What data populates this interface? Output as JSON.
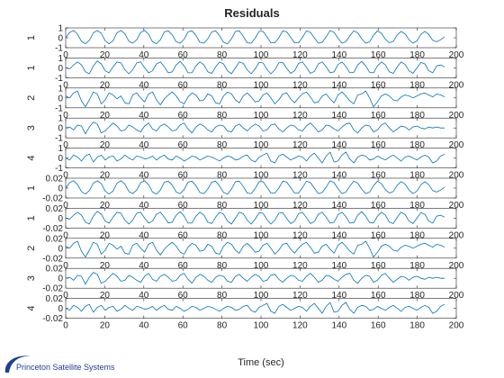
{
  "chart_data": {
    "type": "line",
    "title": "Residuals",
    "xlabel": "Time (sec)",
    "xlim": [
      0,
      200
    ],
    "xticks": [
      0,
      20,
      40,
      60,
      80,
      100,
      120,
      140,
      160,
      180,
      200
    ],
    "x_end": 194,
    "line_color": "#0072bd",
    "grid": false,
    "panels": [
      {
        "ylabel": "1",
        "ylim": [
          -1,
          1
        ],
        "yticks": [
          "1",
          "0",
          "-1"
        ],
        "y": [
          0.0,
          0.55,
          0.75,
          0.35,
          -0.35,
          -0.6,
          -0.25,
          0.5,
          0.75,
          0.45,
          -0.3,
          -0.6,
          -0.3,
          0.5,
          0.75,
          0.4,
          -0.35,
          -0.55,
          -0.2,
          0.55,
          0.75,
          0.35,
          -0.4,
          -0.6,
          -0.2,
          0.6,
          0.7,
          0.3,
          -0.4,
          -0.55,
          -0.15,
          0.6,
          0.7,
          0.25,
          -0.45,
          -0.55,
          -0.1,
          0.6,
          0.7,
          0.2,
          -0.45,
          -0.6,
          -0.1,
          0.65,
          0.7,
          0.15,
          -0.5,
          -0.55,
          -0.05,
          0.65,
          0.65,
          0.1,
          -0.5,
          -0.5,
          0.0,
          0.7,
          0.6,
          0.05,
          -0.5,
          -0.5,
          0.05,
          0.7,
          0.55,
          0.0,
          -0.55,
          -0.45,
          0.1,
          0.75,
          0.55,
          -0.05,
          -0.55,
          -0.4,
          0.2,
          0.7,
          0.5,
          -0.1,
          -0.55,
          -0.4,
          0.25,
          0.7,
          0.45,
          -0.15,
          -0.5,
          -0.35,
          0.3,
          0.65,
          0.4,
          -0.2,
          -0.55,
          -0.3,
          0.35,
          0.65,
          0.35,
          -0.25,
          -0.4,
          -0.2,
          0.1
        ]
      },
      {
        "ylabel": "1",
        "ylim": [
          -1,
          1
        ],
        "yticks": [
          "1",
          "0",
          "-1"
        ],
        "y": [
          0.0,
          -0.1,
          0.3,
          0.6,
          0.3,
          -0.4,
          -0.6,
          0.2,
          0.7,
          0.4,
          -0.3,
          -0.5,
          0.1,
          0.6,
          0.5,
          -0.2,
          -0.6,
          -0.2,
          0.5,
          0.6,
          0.0,
          -0.5,
          -0.3,
          0.4,
          0.6,
          0.1,
          -0.5,
          -0.4,
          0.3,
          0.65,
          0.2,
          -0.5,
          -0.5,
          0.2,
          0.6,
          0.3,
          -0.4,
          -0.55,
          0.1,
          0.6,
          0.4,
          -0.3,
          -0.6,
          0.0,
          0.6,
          0.45,
          -0.2,
          -0.6,
          -0.1,
          0.55,
          0.5,
          -0.15,
          -0.6,
          -0.2,
          0.5,
          0.55,
          -0.05,
          -0.55,
          -0.3,
          0.45,
          0.6,
          0.05,
          -0.55,
          -0.35,
          0.4,
          0.6,
          0.1,
          -0.5,
          -0.4,
          0.35,
          0.6,
          0.15,
          -0.5,
          -0.45,
          0.3,
          0.65,
          0.2,
          -0.45,
          -0.5,
          0.2,
          0.6,
          0.3,
          -0.4,
          -0.55,
          0.1,
          0.6,
          0.35,
          -0.3,
          -0.55,
          0.0,
          0.55,
          0.4,
          -0.3,
          -0.5,
          0.2,
          0.3,
          0.1
        ]
      },
      {
        "ylabel": "2",
        "ylim": [
          -1,
          1
        ],
        "yticks": [
          "1",
          "0",
          "-1"
        ],
        "y": [
          0.2,
          0.0,
          0.5,
          0.7,
          -0.3,
          -0.9,
          -0.2,
          0.6,
          0.4,
          -0.6,
          -0.2,
          0.5,
          0.3,
          -0.1,
          0.2,
          -0.5,
          -0.6,
          0.3,
          0.5,
          0.0,
          -0.4,
          0.4,
          0.6,
          -0.2,
          -0.7,
          -0.1,
          0.3,
          0.6,
          0.2,
          -0.4,
          -0.6,
          0.1,
          0.5,
          0.3,
          -0.3,
          -0.2,
          0.4,
          0.2,
          -0.5,
          -0.6,
          0.2,
          0.6,
          0.4,
          -0.2,
          -0.5,
          0.2,
          0.5,
          0.1,
          -0.4,
          -0.3,
          0.3,
          0.5,
          0.0,
          -0.6,
          -0.2,
          0.4,
          0.5,
          -0.1,
          -0.5,
          0.0,
          0.4,
          0.6,
          0.1,
          -0.5,
          -0.4,
          0.2,
          0.4,
          -0.1,
          -0.5,
          0.3,
          0.6,
          0.2,
          -0.3,
          -0.6,
          0.3,
          0.4,
          0.7,
          0.0,
          -0.9,
          -0.4,
          0.2,
          0.4,
          0.2,
          -0.2,
          -0.3,
          0.1,
          0.3,
          0.2,
          0.0,
          0.2,
          0.4,
          0.5,
          0.3,
          0.1,
          0.4,
          0.3,
          0.1
        ]
      },
      {
        "ylabel": "3",
        "ylim": [
          -1,
          1
        ],
        "yticks": [
          "1",
          "0",
          "-1"
        ],
        "y": [
          0.0,
          0.1,
          -0.2,
          0.3,
          0.2,
          -0.6,
          0.1,
          0.6,
          0.4,
          -0.5,
          -0.3,
          0.1,
          0.5,
          0.2,
          -0.3,
          -0.2,
          0.3,
          0.1,
          -0.2,
          -0.4,
          0.2,
          0.5,
          -0.1,
          -0.3,
          0.2,
          0.4,
          0.1,
          -0.3,
          -0.2,
          0.3,
          0.5,
          -0.1,
          -0.5,
          0.1,
          0.4,
          0.2,
          -0.2,
          -0.4,
          0.1,
          0.3,
          0.2,
          -0.3,
          -0.4,
          0.2,
          0.4,
          0.0,
          -0.3,
          0.1,
          0.4,
          0.2,
          -0.3,
          -0.2,
          0.3,
          0.4,
          -0.1,
          -0.4,
          0.0,
          0.3,
          0.2,
          -0.2,
          -0.3,
          0.2,
          0.5,
          0.1,
          -0.4,
          -0.2,
          0.3,
          0.2,
          -0.1,
          -0.3,
          0.1,
          0.4,
          0.5,
          -0.2,
          -0.5,
          0.0,
          0.3,
          0.2,
          -0.4,
          -0.2,
          0.3,
          0.5,
          0.0,
          -0.4,
          -0.1,
          0.2,
          0.1,
          -0.2,
          0.1,
          0.2,
          0.0,
          -0.1,
          0.1,
          0.0,
          0.1,
          0.0,
          0.0
        ]
      },
      {
        "ylabel": "4",
        "ylim": [
          -1,
          1
        ],
        "yticks": [
          "1",
          "0",
          "-1"
        ],
        "y": [
          0.0,
          -0.2,
          0.3,
          0.1,
          -0.3,
          0.2,
          0.4,
          -0.4,
          0.1,
          0.3,
          -0.2,
          0.1,
          0.2,
          -0.3,
          -0.1,
          0.3,
          0.0,
          -0.2,
          0.2,
          0.1,
          -0.1,
          0.0,
          0.2,
          -0.2,
          0.1,
          0.3,
          -0.1,
          -0.2,
          0.2,
          0.0,
          -0.3,
          -0.1,
          0.2,
          0.1,
          -0.2,
          0.0,
          0.2,
          0.1,
          -0.1,
          -0.3,
          0.0,
          0.2,
          0.1,
          -0.2,
          -0.1,
          0.2,
          0.3,
          -0.2,
          -0.4,
          0.1,
          0.3,
          0.5,
          -0.3,
          -0.5,
          0.2,
          0.4,
          0.1,
          -0.2,
          0.0,
          0.2,
          0.1,
          -0.3,
          0.2,
          0.5,
          0.0,
          -0.5,
          0.2,
          0.6,
          -0.4,
          -0.3,
          0.3,
          0.6,
          -0.1,
          -0.5,
          0.1,
          0.3,
          0.2,
          -0.2,
          -0.1,
          0.2,
          0.0,
          -0.2,
          0.1,
          0.3,
          0.0,
          -0.3,
          0.1,
          0.2,
          0.0,
          -0.2,
          0.1,
          0.3,
          0.1,
          -0.5,
          -0.3,
          0.2,
          0.4
        ]
      },
      {
        "ylabel": "1",
        "ylim": [
          -0.02,
          0.02
        ],
        "yticks": [
          "0.02",
          "0",
          "-0.02"
        ],
        "y": [
          0.0,
          0.011,
          0.015,
          0.007,
          -0.007,
          -0.012,
          -0.005,
          0.01,
          0.015,
          0.009,
          -0.006,
          -0.012,
          -0.006,
          0.01,
          0.015,
          0.008,
          -0.007,
          -0.011,
          -0.004,
          0.011,
          0.015,
          0.007,
          -0.008,
          -0.012,
          -0.004,
          0.012,
          0.014,
          0.006,
          -0.008,
          -0.011,
          -0.003,
          0.012,
          0.014,
          0.005,
          -0.009,
          -0.011,
          -0.002,
          0.012,
          0.014,
          0.004,
          -0.009,
          -0.012,
          -0.002,
          0.013,
          0.014,
          0.003,
          -0.01,
          -0.011,
          -0.001,
          0.013,
          0.013,
          0.002,
          -0.01,
          -0.01,
          0.0,
          0.014,
          0.012,
          0.001,
          -0.01,
          -0.01,
          0.001,
          0.014,
          0.011,
          0.0,
          -0.011,
          -0.009,
          0.002,
          0.015,
          0.011,
          -0.001,
          -0.011,
          -0.008,
          0.004,
          0.014,
          0.01,
          -0.002,
          -0.011,
          -0.008,
          0.005,
          0.014,
          0.009,
          -0.003,
          -0.01,
          -0.007,
          0.006,
          0.013,
          0.008,
          -0.004,
          -0.011,
          -0.006,
          0.007,
          0.013,
          0.007,
          -0.005,
          -0.008,
          -0.004,
          0.002
        ]
      },
      {
        "ylabel": "1",
        "ylim": [
          -0.02,
          0.02
        ],
        "yticks": [
          "0.02",
          "0",
          "-0.02"
        ],
        "y": [
          0.0,
          -0.002,
          0.006,
          0.012,
          0.006,
          -0.008,
          -0.012,
          0.004,
          0.014,
          0.008,
          -0.006,
          -0.01,
          0.002,
          0.012,
          0.01,
          -0.004,
          -0.012,
          -0.004,
          0.01,
          0.012,
          0.0,
          -0.01,
          -0.006,
          0.008,
          0.012,
          0.002,
          -0.01,
          -0.008,
          0.006,
          0.013,
          0.004,
          -0.01,
          -0.01,
          0.004,
          0.012,
          0.006,
          -0.008,
          -0.011,
          0.002,
          0.012,
          0.008,
          -0.006,
          -0.012,
          0.0,
          0.012,
          0.009,
          -0.004,
          -0.012,
          -0.002,
          0.011,
          0.01,
          -0.003,
          -0.012,
          -0.004,
          0.01,
          0.011,
          -0.001,
          -0.011,
          -0.006,
          0.009,
          0.012,
          0.001,
          -0.011,
          -0.007,
          0.008,
          0.012,
          0.002,
          -0.01,
          -0.008,
          0.007,
          0.012,
          0.003,
          -0.01,
          -0.009,
          0.006,
          0.013,
          0.004,
          -0.009,
          -0.01,
          0.004,
          0.012,
          0.006,
          -0.008,
          -0.011,
          0.002,
          0.012,
          0.007,
          -0.006,
          -0.011,
          0.0,
          0.011,
          0.008,
          -0.006,
          -0.01,
          0.004,
          0.006,
          0.002
        ]
      },
      {
        "ylabel": "2",
        "ylim": [
          -0.02,
          0.02
        ],
        "yticks": [
          "0.02",
          "0",
          "-0.02"
        ],
        "y": [
          0.004,
          0.0,
          0.01,
          0.014,
          -0.006,
          -0.018,
          -0.004,
          0.012,
          0.008,
          -0.012,
          -0.004,
          0.01,
          0.006,
          -0.002,
          0.004,
          -0.01,
          -0.012,
          0.006,
          0.01,
          0.0,
          -0.008,
          0.008,
          0.012,
          -0.004,
          -0.014,
          -0.002,
          0.006,
          0.012,
          0.004,
          -0.008,
          -0.012,
          0.002,
          0.01,
          0.006,
          -0.006,
          -0.004,
          0.008,
          0.004,
          -0.01,
          -0.012,
          0.004,
          0.012,
          0.008,
          -0.004,
          -0.01,
          0.004,
          0.01,
          0.002,
          -0.008,
          -0.006,
          0.006,
          0.01,
          0.0,
          -0.012,
          -0.004,
          0.008,
          0.01,
          -0.002,
          -0.01,
          0.0,
          0.008,
          0.012,
          0.002,
          -0.01,
          -0.008,
          0.004,
          0.008,
          -0.002,
          -0.01,
          0.006,
          0.012,
          0.004,
          -0.006,
          -0.012,
          0.006,
          0.008,
          0.014,
          0.0,
          -0.018,
          -0.008,
          0.004,
          0.008,
          0.004,
          -0.004,
          -0.006,
          0.002,
          0.006,
          0.004,
          0.0,
          0.004,
          0.008,
          0.01,
          0.006,
          0.002,
          0.008,
          0.006,
          0.002
        ]
      },
      {
        "ylabel": "3",
        "ylim": [
          -0.02,
          0.02
        ],
        "yticks": [
          "0.02",
          "0",
          "-0.02"
        ],
        "y": [
          0.0,
          0.002,
          -0.004,
          0.006,
          0.004,
          -0.012,
          0.002,
          0.012,
          0.008,
          -0.01,
          -0.006,
          0.002,
          0.01,
          0.004,
          -0.006,
          -0.004,
          0.006,
          0.002,
          -0.004,
          -0.008,
          0.004,
          0.01,
          -0.002,
          -0.006,
          0.004,
          0.008,
          0.002,
          -0.006,
          -0.004,
          0.006,
          0.01,
          -0.002,
          -0.01,
          0.002,
          0.008,
          0.004,
          -0.004,
          -0.008,
          0.002,
          0.006,
          0.004,
          -0.006,
          -0.008,
          0.004,
          0.008,
          0.0,
          -0.006,
          0.002,
          0.008,
          0.004,
          -0.006,
          -0.004,
          0.006,
          0.008,
          -0.002,
          -0.008,
          0.0,
          0.006,
          0.004,
          -0.004,
          -0.006,
          0.004,
          0.01,
          0.002,
          -0.008,
          -0.004,
          0.006,
          0.004,
          -0.002,
          -0.006,
          0.002,
          0.008,
          0.01,
          -0.004,
          -0.01,
          0.0,
          0.006,
          0.004,
          -0.008,
          -0.004,
          0.006,
          0.01,
          0.0,
          -0.008,
          -0.002,
          0.004,
          0.002,
          -0.004,
          0.002,
          0.004,
          0.0,
          -0.002,
          0.002,
          0.0,
          0.002,
          0.0,
          0.0
        ]
      },
      {
        "ylabel": "4",
        "ylim": [
          -0.02,
          0.02
        ],
        "yticks": [
          "0.02",
          "0",
          "-0.02"
        ],
        "y": [
          0.0,
          -0.004,
          0.006,
          0.002,
          -0.006,
          0.004,
          0.008,
          -0.008,
          0.002,
          0.006,
          -0.004,
          0.002,
          0.004,
          -0.006,
          -0.002,
          0.006,
          0.0,
          -0.004,
          0.004,
          0.002,
          -0.002,
          0.0,
          0.004,
          -0.004,
          0.002,
          0.006,
          -0.002,
          -0.004,
          0.004,
          0.0,
          -0.006,
          -0.002,
          0.004,
          0.002,
          -0.004,
          0.0,
          0.004,
          0.002,
          -0.002,
          -0.006,
          0.0,
          0.004,
          0.002,
          -0.004,
          -0.002,
          0.004,
          0.006,
          -0.004,
          -0.008,
          0.002,
          0.006,
          0.01,
          -0.006,
          -0.01,
          0.004,
          0.008,
          0.002,
          -0.004,
          0.0,
          0.004,
          0.002,
          -0.006,
          0.004,
          0.01,
          0.0,
          -0.01,
          0.004,
          0.012,
          -0.008,
          -0.006,
          0.006,
          0.012,
          -0.002,
          -0.01,
          0.002,
          0.006,
          0.004,
          -0.004,
          -0.002,
          0.004,
          0.0,
          -0.004,
          0.002,
          0.006,
          0.0,
          -0.006,
          0.002,
          0.004,
          0.0,
          -0.004,
          0.002,
          0.006,
          0.002,
          -0.01,
          -0.006,
          0.004,
          0.008
        ]
      }
    ]
  },
  "watermark": {
    "text": "Princeton Satellite Systems",
    "color": "#1f3f8f"
  }
}
